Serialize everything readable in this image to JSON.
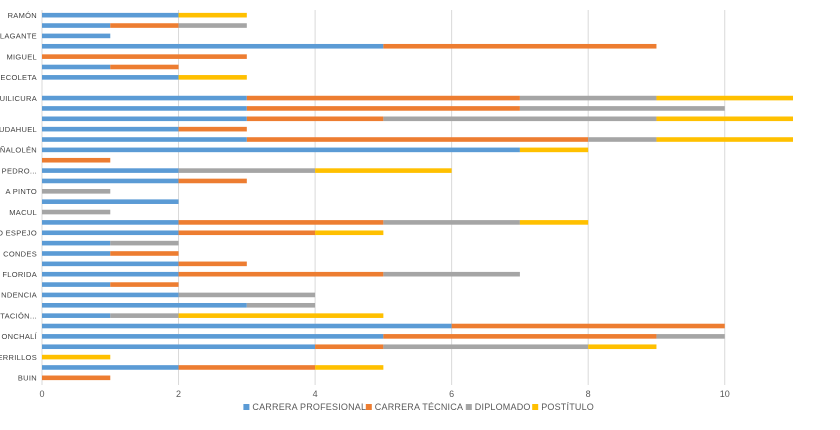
{
  "chart_data": {
    "type": "bar",
    "orientation": "horizontal",
    "stacked": true,
    "categories_top_to_bottom": [
      "RAMÓN",
      "",
      "LAGANTE",
      "",
      "MIGUEL",
      "",
      "RECOLETA",
      "",
      "QUILICURA",
      "",
      "",
      "UDAHUEL",
      "",
      "ÑALOLÉN",
      "",
      "PEDRO...",
      "",
      "A PINTO",
      "",
      "MACUL",
      "",
      "O ESPEJO",
      "",
      "CONDES",
      "",
      "FLORIDA",
      "",
      "NDENCIA",
      "",
      "STACIÓN...",
      "",
      "ONCHALÍ",
      "",
      "ERRILLOS",
      "",
      "BUIN"
    ],
    "series": [
      {
        "name": "CARRERA PROFESIONAL",
        "color": "#5B9BD5",
        "values": [
          2,
          1,
          1,
          5,
          0,
          1,
          2,
          0,
          3,
          3,
          3,
          2,
          3,
          7,
          0,
          2,
          2,
          0,
          2,
          0,
          2,
          2,
          1,
          1,
          2,
          2,
          1,
          2,
          3,
          1,
          6,
          5,
          4,
          0,
          2,
          0
        ]
      },
      {
        "name": "CARRERA TÉCNICA",
        "color": "#ED7D31",
        "values": [
          0,
          1,
          0,
          4,
          3,
          1,
          0,
          0,
          4,
          4,
          2,
          1,
          5,
          0,
          1,
          0,
          1,
          0,
          0,
          0,
          3,
          2,
          0,
          1,
          1,
          3,
          1,
          0,
          0,
          0,
          4,
          4,
          1,
          0,
          2,
          1
        ]
      },
      {
        "name": "DIPLOMADO",
        "color": "#A5A5A5",
        "values": [
          0,
          1,
          0,
          0,
          0,
          0,
          0,
          0,
          2,
          3,
          4,
          0,
          1,
          0,
          0,
          2,
          0,
          1,
          0,
          1,
          2,
          0,
          1,
          0,
          0,
          2,
          0,
          2,
          1,
          1,
          0,
          1,
          3,
          0,
          0,
          0
        ]
      },
      {
        "name": "POSTÍTULO",
        "color": "#FFC000",
        "values": [
          1,
          0,
          0,
          0,
          0,
          0,
          1,
          0,
          2,
          0,
          2,
          0,
          2,
          1,
          0,
          2,
          0,
          0,
          0,
          0,
          1,
          1,
          0,
          0,
          0,
          0,
          0,
          0,
          0,
          3,
          0,
          0,
          1,
          1,
          1,
          0
        ]
      }
    ],
    "xlim": [
      0,
      11
    ],
    "xticks": [
      0,
      2,
      4,
      6,
      8,
      10
    ],
    "grid": "vertical",
    "legend_position": "bottom"
  }
}
